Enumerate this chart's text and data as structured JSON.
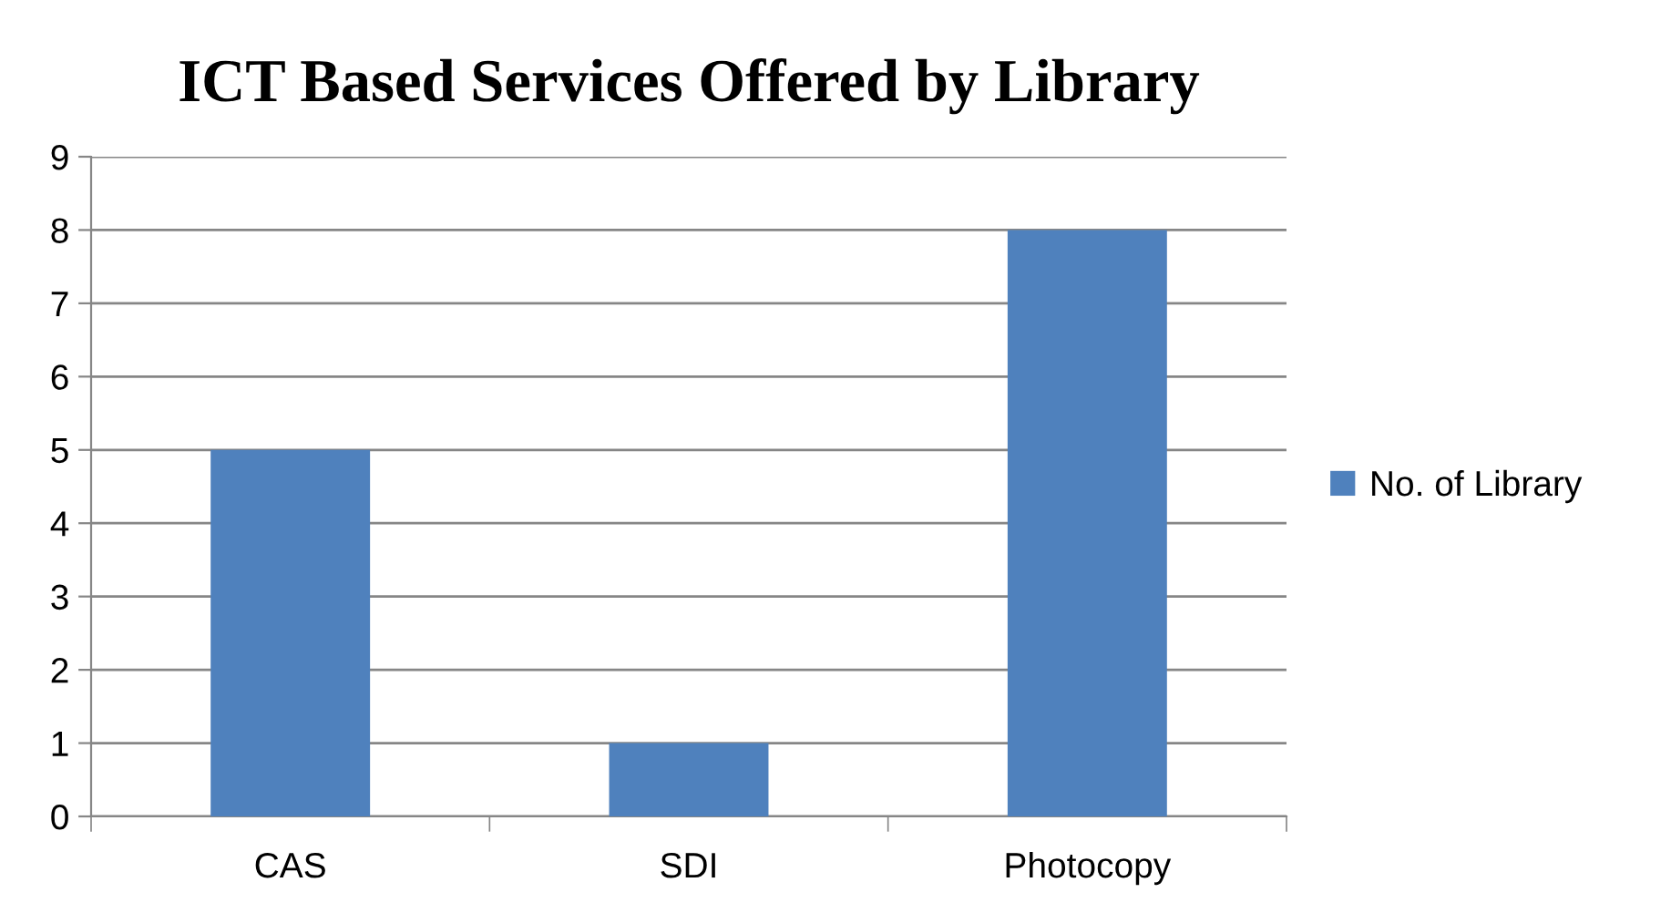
{
  "chart_data": {
    "type": "bar",
    "title": "ICT Based Services Offered by Library",
    "categories": [
      "CAS",
      "SDI",
      "Photocopy"
    ],
    "series": [
      {
        "name": "No. of Library",
        "color": "#4f81bd",
        "values": [
          5,
          1,
          8
        ]
      }
    ],
    "ylim": [
      0,
      9
    ],
    "yticks": [
      0,
      1,
      2,
      3,
      4,
      5,
      6,
      7,
      8,
      9
    ],
    "grid": "y",
    "legend": "right"
  }
}
